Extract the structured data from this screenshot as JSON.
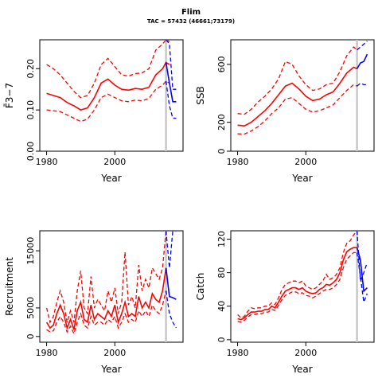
{
  "title": "Flim",
  "subtitle": "TAC = 57432 (46661;73179)",
  "colors": {
    "historical": "#ff0000",
    "projection": "#0000ff",
    "marker": "#c8c8c8",
    "axis": "#000000"
  },
  "chart_data": [
    {
      "type": "line",
      "xlabel": "Year",
      "ylabel": "F̄3−7",
      "xlim": [
        1978,
        2020
      ],
      "ylim": [
        0,
        0.27
      ],
      "xticks": [
        1980,
        2000
      ],
      "xtick_labels": [
        "1980",
        "2000"
      ],
      "yticks": [
        0.0,
        0.1,
        0.2
      ],
      "ytick_labels": [
        "0.00",
        "0.10",
        "0.20"
      ],
      "marker_year": 2015,
      "series": [
        {
          "role": "historical-median",
          "style": "solid",
          "x": [
            1980,
            1982,
            1984,
            1986,
            1988,
            1990,
            1992,
            1994,
            1996,
            1998,
            2000,
            2002,
            2004,
            2006,
            2008,
            2010,
            2012,
            2014,
            2015,
            2016
          ],
          "y": [
            0.14,
            0.135,
            0.13,
            0.118,
            0.11,
            0.1,
            0.105,
            0.13,
            0.165,
            0.175,
            0.16,
            0.15,
            0.148,
            0.152,
            0.15,
            0.155,
            0.185,
            0.2,
            0.215,
            0.21
          ]
        },
        {
          "role": "historical-upper",
          "style": "dashed",
          "x": [
            1980,
            1982,
            1984,
            1986,
            1988,
            1990,
            1992,
            1994,
            1996,
            1998,
            2000,
            2002,
            2004,
            2006,
            2008,
            2010,
            2012,
            2014,
            2015,
            2016
          ],
          "y": [
            0.21,
            0.2,
            0.185,
            0.165,
            0.145,
            0.13,
            0.135,
            0.165,
            0.21,
            0.225,
            0.205,
            0.185,
            0.182,
            0.188,
            0.19,
            0.2,
            0.245,
            0.26,
            0.27,
            0.265
          ]
        },
        {
          "role": "historical-lower",
          "style": "dashed",
          "x": [
            1980,
            1982,
            1984,
            1986,
            1988,
            1990,
            1992,
            1994,
            1996,
            1998,
            2000,
            2002,
            2004,
            2006,
            2008,
            2010,
            2012,
            2014,
            2015,
            2016
          ],
          "y": [
            0.1,
            0.098,
            0.096,
            0.088,
            0.08,
            0.072,
            0.078,
            0.1,
            0.13,
            0.138,
            0.13,
            0.122,
            0.12,
            0.124,
            0.122,
            0.128,
            0.15,
            0.16,
            0.17,
            0.165
          ]
        },
        {
          "role": "projection-median",
          "style": "solid",
          "x": [
            2015,
            2016,
            2017,
            2018
          ],
          "y": [
            0.215,
            0.165,
            0.12,
            0.12
          ]
        },
        {
          "role": "projection-upper",
          "style": "dashed",
          "x": [
            2015,
            2016,
            2017,
            2018
          ],
          "y": [
            0.27,
            0.26,
            0.15,
            0.15
          ]
        },
        {
          "role": "projection-lower",
          "style": "dashed",
          "x": [
            2015,
            2016,
            2017,
            2018
          ],
          "y": [
            0.17,
            0.11,
            0.08,
            0.08
          ]
        }
      ]
    },
    {
      "type": "line",
      "xlabel": "Year",
      "ylabel": "SSB",
      "xlim": [
        1978,
        2020
      ],
      "ylim": [
        0,
        770
      ],
      "xticks": [
        1980,
        2000
      ],
      "xtick_labels": [
        "1980",
        "2000"
      ],
      "yticks": [
        0,
        200,
        600
      ],
      "ytick_labels": [
        "0",
        "200",
        "600"
      ],
      "marker_year": 2015,
      "series": [
        {
          "role": "historical-median",
          "style": "solid",
          "x": [
            1980,
            1982,
            1984,
            1986,
            1988,
            1990,
            1992,
            1994,
            1996,
            1998,
            2000,
            2002,
            2004,
            2006,
            2008,
            2010,
            2012,
            2014,
            2015
          ],
          "y": [
            180,
            175,
            200,
            240,
            280,
            330,
            390,
            450,
            470,
            430,
            380,
            350,
            360,
            390,
            410,
            470,
            540,
            580,
            570
          ]
        },
        {
          "role": "historical-upper",
          "style": "dashed",
          "x": [
            1980,
            1982,
            1984,
            1986,
            1988,
            1990,
            1992,
            1994,
            1996,
            1998,
            2000,
            2002,
            2004,
            2006,
            2008,
            2010,
            2012,
            2014,
            2015
          ],
          "y": [
            260,
            255,
            290,
            340,
            380,
            430,
            500,
            620,
            600,
            520,
            460,
            420,
            430,
            460,
            470,
            550,
            660,
            720,
            700
          ]
        },
        {
          "role": "historical-lower",
          "style": "dashed",
          "x": [
            1980,
            1982,
            1984,
            1986,
            1988,
            1990,
            1992,
            1994,
            1996,
            1998,
            2000,
            2002,
            2004,
            2006,
            2008,
            2010,
            2012,
            2014,
            2015
          ],
          "y": [
            120,
            118,
            140,
            170,
            210,
            260,
            300,
            360,
            370,
            330,
            290,
            270,
            280,
            300,
            320,
            370,
            420,
            460,
            450
          ]
        },
        {
          "role": "projection-median",
          "style": "solid",
          "x": [
            2015,
            2016,
            2017,
            2018
          ],
          "y": [
            570,
            610,
            620,
            670
          ]
        },
        {
          "role": "projection-upper",
          "style": "dashed",
          "x": [
            2015,
            2016,
            2017,
            2018
          ],
          "y": [
            700,
            720,
            740,
            760
          ]
        },
        {
          "role": "projection-lower",
          "style": "dashed",
          "x": [
            2015,
            2016,
            2017,
            2018
          ],
          "y": [
            450,
            470,
            460,
            460
          ]
        }
      ]
    },
    {
      "type": "line",
      "xlabel": "Year",
      "ylabel": "Recruitment",
      "xlim": [
        1978,
        2020
      ],
      "ylim": [
        -1000,
        18500
      ],
      "xticks": [
        1980,
        2000
      ],
      "xtick_labels": [
        "1980",
        "2000"
      ],
      "yticks": [
        0,
        5000,
        15000
      ],
      "ytick_labels": [
        "0",
        "5000",
        "15000"
      ],
      "marker_year": 2015,
      "series": [
        {
          "role": "historical-median",
          "style": "solid",
          "x": [
            1980,
            1981,
            1982,
            1983,
            1984,
            1985,
            1986,
            1987,
            1988,
            1989,
            1990,
            1991,
            1992,
            1993,
            1994,
            1995,
            1996,
            1997,
            1998,
            1999,
            2000,
            2001,
            2002,
            2003,
            2004,
            2005,
            2006,
            2007,
            2008,
            2009,
            2010,
            2011,
            2012,
            2013,
            2014,
            2015
          ],
          "y": [
            2500,
            1500,
            2000,
            4000,
            5500,
            4000,
            1500,
            3000,
            1200,
            4500,
            6000,
            3000,
            2500,
            5500,
            3000,
            4000,
            3500,
            3000,
            4500,
            3500,
            5500,
            2500,
            4000,
            6000,
            3500,
            4000,
            3500,
            7000,
            5000,
            6000,
            5000,
            7500,
            6500,
            6000,
            8000,
            12000
          ]
        },
        {
          "role": "historical-upper",
          "style": "dashed",
          "x": [
            1980,
            1981,
            1982,
            1983,
            1984,
            1985,
            1986,
            1987,
            1988,
            1989,
            1990,
            1991,
            1992,
            1993,
            1994,
            1995,
            1996,
            1997,
            1998,
            1999,
            2000,
            2001,
            2002,
            2003,
            2004,
            2005,
            2006,
            2007,
            2008,
            2009,
            2010,
            2011,
            2012,
            2013,
            2014,
            2015
          ],
          "y": [
            5000,
            2500,
            3500,
            6000,
            8000,
            6000,
            2500,
            4500,
            2500,
            8000,
            11500,
            5000,
            4000,
            10500,
            5000,
            6500,
            5500,
            4500,
            8000,
            6000,
            8500,
            4000,
            6000,
            14800,
            5500,
            7000,
            5000,
            12500,
            8000,
            10000,
            8500,
            12000,
            11000,
            10000,
            12000,
            18500
          ]
        },
        {
          "role": "historical-lower",
          "style": "dashed",
          "x": [
            1980,
            1981,
            1982,
            1983,
            1984,
            1985,
            1986,
            1987,
            1988,
            1989,
            1990,
            1991,
            1992,
            1993,
            1994,
            1995,
            1996,
            1997,
            1998,
            1999,
            2000,
            2001,
            2002,
            2003,
            2004,
            2005,
            2006,
            2007,
            2008,
            2009,
            2010,
            2011,
            2012,
            2013,
            2014,
            2015
          ],
          "y": [
            1200,
            800,
            1000,
            2500,
            3500,
            2500,
            800,
            1800,
            500,
            2500,
            4000,
            2000,
            1500,
            3500,
            2000,
            2500,
            2500,
            2000,
            3000,
            2500,
            3500,
            1500,
            2500,
            4000,
            2500,
            3000,
            2500,
            4500,
            3500,
            4500,
            3500,
            5500,
            4500,
            4000,
            5500,
            8000
          ]
        },
        {
          "role": "projection-median",
          "style": "solid",
          "x": [
            2015,
            2016,
            2017,
            2018
          ],
          "y": [
            12000,
            7000,
            6800,
            6500
          ]
        },
        {
          "role": "projection-upper",
          "style": "dashed",
          "x": [
            2015,
            2016,
            2017,
            2018
          ],
          "y": [
            18500,
            12000,
            18500,
            18500
          ]
        },
        {
          "role": "projection-lower",
          "style": "dashed",
          "x": [
            2015,
            2016,
            2017,
            2018
          ],
          "y": [
            8000,
            4000,
            2500,
            1500
          ]
        }
      ]
    },
    {
      "type": "line",
      "xlabel": "Year",
      "ylabel": "Catch",
      "xlim": [
        1978,
        2020
      ],
      "ylim": [
        -3,
        130
      ],
      "xticks": [
        1980,
        2000
      ],
      "xtick_labels": [
        "1980",
        "2000"
      ],
      "yticks": [
        0,
        40,
        80,
        120
      ],
      "ytick_labels": [
        "0",
        "40",
        "80",
        "120"
      ],
      "marker_year": 2015,
      "series": [
        {
          "role": "historical-median",
          "style": "solid",
          "x": [
            1980,
            1981,
            1982,
            1983,
            1984,
            1985,
            1986,
            1987,
            1988,
            1989,
            1990,
            1991,
            1992,
            1993,
            1994,
            1995,
            1996,
            1997,
            1998,
            1999,
            2000,
            2001,
            2002,
            2003,
            2004,
            2005,
            2006,
            2007,
            2008,
            2009,
            2010,
            2011,
            2012,
            2013,
            2014,
            2015
          ],
          "y": [
            25,
            24,
            26,
            30,
            33,
            33,
            34,
            34,
            36,
            36,
            40,
            38,
            45,
            52,
            58,
            60,
            62,
            62,
            60,
            62,
            58,
            56,
            55,
            56,
            60,
            62,
            66,
            65,
            68,
            72,
            80,
            95,
            105,
            108,
            110,
            110
          ]
        },
        {
          "role": "historical-upper",
          "style": "dashed",
          "x": [
            1980,
            1981,
            1982,
            1983,
            1984,
            1985,
            1986,
            1987,
            1988,
            1989,
            1990,
            1991,
            1992,
            1993,
            1994,
            1995,
            1996,
            1997,
            1998,
            1999,
            2000,
            2001,
            2002,
            2003,
            2004,
            2005,
            2006,
            2007,
            2008,
            2009,
            2010,
            2011,
            2012,
            2013,
            2014,
            2015
          ],
          "y": [
            30,
            26,
            28,
            34,
            38,
            37,
            38,
            38,
            40,
            40,
            44,
            42,
            50,
            60,
            66,
            68,
            70,
            70,
            68,
            70,
            64,
            62,
            60,
            62,
            66,
            70,
            78,
            72,
            74,
            78,
            86,
            104,
            115,
            118,
            125,
            130
          ]
        },
        {
          "role": "historical-lower",
          "style": "dashed",
          "x": [
            1980,
            1981,
            1982,
            1983,
            1984,
            1985,
            1986,
            1987,
            1988,
            1989,
            1990,
            1991,
            1992,
            1993,
            1994,
            1995,
            1996,
            1997,
            1998,
            1999,
            2000,
            2001,
            2002,
            2003,
            2004,
            2005,
            2006,
            2007,
            2008,
            2009,
            2010,
            2011,
            2012,
            2013,
            2014,
            2015
          ],
          "y": [
            22,
            21,
            23,
            27,
            30,
            30,
            31,
            31,
            33,
            33,
            36,
            35,
            41,
            48,
            53,
            55,
            57,
            57,
            55,
            56,
            53,
            52,
            50,
            52,
            55,
            58,
            60,
            60,
            62,
            66,
            72,
            86,
            96,
            100,
            104,
            104
          ]
        },
        {
          "role": "projection-median",
          "style": "solid",
          "x": [
            2015,
            2016,
            2017,
            2018
          ],
          "y": [
            110,
            95,
            58,
            62
          ]
        },
        {
          "role": "projection-upper",
          "style": "dashed",
          "x": [
            2015,
            2016,
            2017,
            2018
          ],
          "y": [
            130,
            70,
            80,
            92
          ]
        },
        {
          "role": "projection-lower",
          "style": "dashed",
          "x": [
            2015,
            2016,
            2017,
            2018
          ],
          "y": [
            104,
            75,
            45,
            55
          ]
        }
      ]
    }
  ]
}
